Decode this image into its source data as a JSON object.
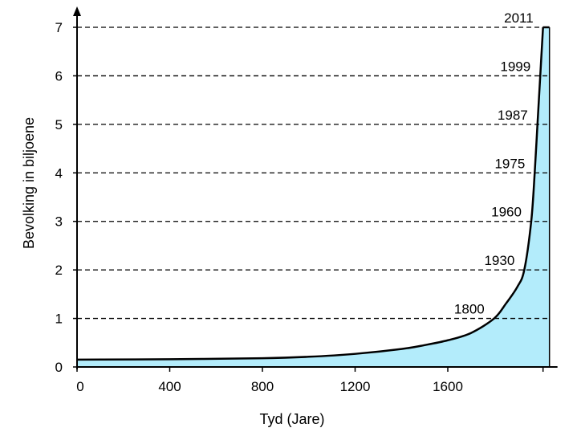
{
  "chart_data": {
    "type": "area",
    "xlabel": "Tyd (Jare)",
    "ylabel": "Bevolking in biljoene",
    "xlim": [
      0,
      2011
    ],
    "ylim": [
      0,
      7
    ],
    "xticks": [
      0,
      400,
      800,
      1200,
      1600
    ],
    "yticks": [
      0,
      1,
      2,
      3,
      4,
      5,
      6,
      7
    ],
    "grid": "horizontal dashed at milestone levels",
    "fill_color": "#b3ecfb",
    "line_color": "#000000",
    "series": [
      {
        "x": [
          0,
          400,
          800,
          1000,
          1200,
          1400,
          1500,
          1600,
          1700,
          1800,
          1850,
          1900,
          1930,
          1960,
          1975,
          1987,
          1999,
          2011
        ],
        "y": [
          0.15,
          0.16,
          0.18,
          0.21,
          0.27,
          0.37,
          0.45,
          0.55,
          0.7,
          1,
          1.3,
          1.65,
          2,
          3,
          4,
          5,
          6,
          7
        ]
      }
    ],
    "milestones": [
      {
        "year": "1800",
        "value": 1
      },
      {
        "year": "1930",
        "value": 2
      },
      {
        "year": "1960",
        "value": 3
      },
      {
        "year": "1975",
        "value": 4
      },
      {
        "year": "1987",
        "value": 5
      },
      {
        "year": "1999",
        "value": 6
      },
      {
        "year": "2011",
        "value": 7
      }
    ]
  }
}
